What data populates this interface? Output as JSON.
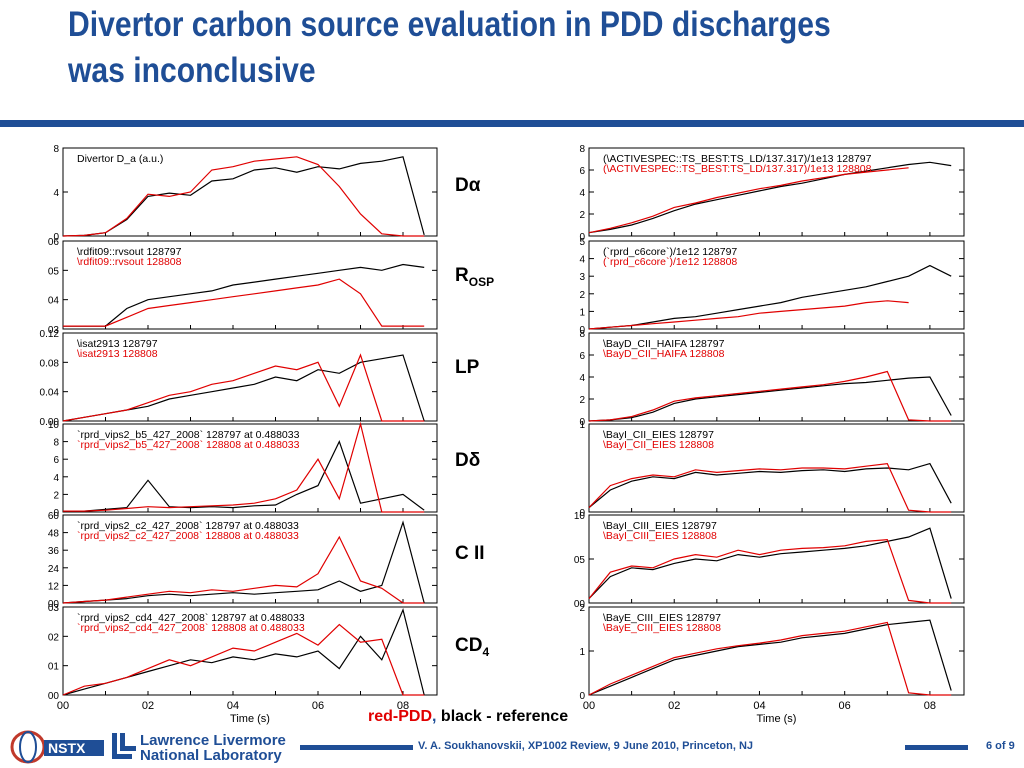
{
  "title": "Divertor carbon source evaluation in PDD discharges was inconclusive",
  "middle_labels": {
    "d_alpha": "Dα",
    "r_main": "R",
    "r_sub": "OSP",
    "lp": "LP",
    "d_delta": "Dδ",
    "c2": "C II",
    "cd_main": "CD",
    "cd_sub": "4"
  },
  "legend_note": {
    "red": "red-PDD",
    "comma": ",",
    "black": " black - reference"
  },
  "footer": {
    "text": "V. A. Soukhanovskii, XP1002 Review, 9 June 2010, Princeton, NJ",
    "page": "6 of 9"
  },
  "logos": {
    "nstx": "NSTX",
    "llnl_line1": "Lawrence Livermore",
    "llnl_line2": "National Laboratory"
  },
  "colors": {
    "title": "#1f4e96",
    "ref_line": "#000000",
    "pdd_line": "#e00000"
  },
  "chart_data": [
    {
      "type": "line",
      "column": "left",
      "x": [
        0.0,
        0.05,
        0.1,
        0.15,
        0.2,
        0.25,
        0.3,
        0.35,
        0.4,
        0.45,
        0.5,
        0.55,
        0.6,
        0.65,
        0.7,
        0.75,
        0.8,
        0.85
      ],
      "ylim": [
        0,
        8
      ],
      "yticks": [
        "0",
        "4",
        "8"
      ],
      "xticks": [],
      "labels": [
        "Divertor D_a (a.u.)"
      ],
      "series": [
        {
          "values": [
            0,
            0.05,
            0.3,
            1.5,
            3.6,
            3.9,
            3.7,
            5.0,
            5.2,
            6.0,
            6.2,
            5.8,
            6.3,
            6.1,
            6.6,
            6.8,
            7.2,
            0.1
          ]
        },
        {
          "values": [
            0,
            0.05,
            0.3,
            1.6,
            3.8,
            3.6,
            4.0,
            6.0,
            6.3,
            6.8,
            7.0,
            7.2,
            6.5,
            4.5,
            2.0,
            0.2,
            0.0,
            0.0
          ]
        }
      ]
    },
    {
      "type": "line",
      "column": "left",
      "x": [
        0.0,
        0.05,
        0.1,
        0.15,
        0.2,
        0.25,
        0.3,
        0.35,
        0.4,
        0.45,
        0.5,
        0.55,
        0.6,
        0.65,
        0.7,
        0.75,
        0.8,
        0.85
      ],
      "ylim": [
        0.03,
        0.06
      ],
      "yticks": [
        "03",
        "04",
        "05",
        "06"
      ],
      "xticks": [],
      "labels": [
        "\\rdfit09::rvsout  128797",
        "\\rdfit09::rvsout  128808"
      ],
      "series": [
        {
          "values": [
            0.031,
            0.031,
            0.031,
            0.037,
            0.04,
            0.041,
            0.042,
            0.043,
            0.045,
            0.046,
            0.047,
            0.048,
            0.049,
            0.05,
            0.051,
            0.05,
            0.052,
            0.051
          ]
        },
        {
          "values": [
            0.031,
            0.031,
            0.031,
            0.034,
            0.037,
            0.038,
            0.039,
            0.04,
            0.041,
            0.042,
            0.043,
            0.044,
            0.045,
            0.047,
            0.042,
            0.031,
            0.031,
            0.031
          ]
        }
      ]
    },
    {
      "type": "line",
      "column": "left",
      "x": [
        0.0,
        0.05,
        0.1,
        0.15,
        0.2,
        0.25,
        0.3,
        0.35,
        0.4,
        0.45,
        0.5,
        0.55,
        0.6,
        0.65,
        0.7,
        0.75,
        0.8,
        0.85
      ],
      "ylim": [
        0,
        0.12
      ],
      "yticks": [
        "0.00",
        "0.04",
        "0.08",
        "0.12"
      ],
      "xticks": [],
      "labels": [
        "\\isat2913  128797",
        "\\isat2913  128808"
      ],
      "series": [
        {
          "values": [
            0.0,
            0.005,
            0.01,
            0.015,
            0.02,
            0.03,
            0.035,
            0.04,
            0.045,
            0.05,
            0.06,
            0.055,
            0.07,
            0.065,
            0.08,
            0.085,
            0.09,
            0.0
          ]
        },
        {
          "values": [
            0.0,
            0.005,
            0.01,
            0.015,
            0.025,
            0.035,
            0.04,
            0.05,
            0.055,
            0.065,
            0.075,
            0.07,
            0.08,
            0.02,
            0.09,
            0.0,
            0.0,
            0.0
          ]
        }
      ]
    },
    {
      "type": "line",
      "column": "left",
      "x": [
        0.0,
        0.05,
        0.1,
        0.15,
        0.2,
        0.25,
        0.3,
        0.35,
        0.4,
        0.45,
        0.5,
        0.55,
        0.6,
        0.65,
        0.7,
        0.75,
        0.8,
        0.85
      ],
      "ylim": [
        0,
        10
      ],
      "yticks": [
        "0",
        "2",
        "4",
        "6",
        "8",
        "10"
      ],
      "xticks": [],
      "labels": [
        "`rprd_vips2_b5_427_2008`  128797 at 0.488033",
        "`rprd_vips2_b5_427_2008`  128808 at 0.488033"
      ],
      "series": [
        {
          "values": [
            0.1,
            0.1,
            0.3,
            0.5,
            3.6,
            0.6,
            0.5,
            0.6,
            0.5,
            0.7,
            0.8,
            2.0,
            3.0,
            8.0,
            1.0,
            1.5,
            2.0,
            0.2
          ]
        },
        {
          "values": [
            0.1,
            0.1,
            0.2,
            0.4,
            0.6,
            0.5,
            0.6,
            0.7,
            0.8,
            1.0,
            1.5,
            2.5,
            6.0,
            1.5,
            10.0,
            0.0,
            0.0,
            0.0
          ]
        }
      ]
    },
    {
      "type": "line",
      "column": "left",
      "x": [
        0.0,
        0.05,
        0.1,
        0.15,
        0.2,
        0.25,
        0.3,
        0.35,
        0.4,
        0.45,
        0.5,
        0.55,
        0.6,
        0.65,
        0.7,
        0.75,
        0.8,
        0.85
      ],
      "ylim": [
        0,
        60
      ],
      "yticks": [
        "00",
        "12",
        "24",
        "36",
        "48",
        "60"
      ],
      "xticks": [],
      "labels": [
        "`rprd_vips2_c2_427_2008`  128797 at 0.488033",
        "`rprd_vips2_c2_427_2008`  128808 at 0.488033"
      ],
      "series": [
        {
          "values": [
            0,
            1,
            2,
            3,
            5,
            6,
            5,
            6,
            7,
            6,
            7,
            8,
            9,
            15,
            8,
            12,
            55,
            0
          ]
        },
        {
          "values": [
            0,
            1,
            2,
            4,
            6,
            8,
            7,
            9,
            8,
            10,
            12,
            11,
            20,
            45,
            15,
            10,
            0,
            0
          ]
        }
      ]
    },
    {
      "type": "line",
      "column": "left",
      "x": [
        0.0,
        0.05,
        0.1,
        0.15,
        0.2,
        0.25,
        0.3,
        0.35,
        0.4,
        0.45,
        0.5,
        0.55,
        0.6,
        0.65,
        0.7,
        0.75,
        0.8,
        0.85
      ],
      "ylim": [
        0,
        0.03
      ],
      "yticks": [
        "00",
        "01",
        "02",
        "03"
      ],
      "xticks": [
        "00",
        "02",
        "04",
        "06",
        "08"
      ],
      "xlabel": "Time (s)",
      "labels": [
        "`rprd_vips2_cd4_427_2008`  128797 at 0.488033",
        "`rprd_vips2_cd4_427_2008`  128808 at 0.488033"
      ],
      "series": [
        {
          "values": [
            0.0,
            0.002,
            0.004,
            0.006,
            0.008,
            0.01,
            0.012,
            0.011,
            0.013,
            0.012,
            0.014,
            0.013,
            0.015,
            0.009,
            0.02,
            0.012,
            0.029,
            0.0
          ]
        },
        {
          "values": [
            0.0,
            0.003,
            0.004,
            0.006,
            0.009,
            0.012,
            0.01,
            0.013,
            0.016,
            0.015,
            0.018,
            0.021,
            0.017,
            0.024,
            0.018,
            0.019,
            0.0,
            0.0
          ]
        }
      ]
    },
    {
      "type": "line",
      "column": "right",
      "x": [
        0.0,
        0.05,
        0.1,
        0.15,
        0.2,
        0.25,
        0.3,
        0.35,
        0.4,
        0.45,
        0.5,
        0.55,
        0.6,
        0.65,
        0.7,
        0.75,
        0.8,
        0.85
      ],
      "ylim": [
        0,
        8
      ],
      "yticks": [
        "0",
        "2",
        "4",
        "6",
        "8"
      ],
      "xticks": [],
      "labels": [
        "(\\ACTIVESPEC::TS_BEST:TS_LD/137.317)/1e13  128797",
        "(\\ACTIVESPEC::TS_BEST:TS_LD/137.317)/1e13  128808"
      ],
      "series": [
        {
          "values": [
            0.3,
            0.6,
            1.0,
            1.6,
            2.3,
            2.9,
            3.3,
            3.7,
            4.1,
            4.5,
            4.8,
            5.2,
            5.6,
            5.9,
            6.2,
            6.5,
            6.7,
            6.4
          ]
        },
        {
          "values": [
            0.3,
            0.7,
            1.2,
            1.8,
            2.6,
            3.0,
            3.5,
            3.9,
            4.3,
            4.6,
            5.0,
            5.3,
            5.6,
            5.8,
            6.0,
            6.2,
            null,
            null
          ]
        }
      ]
    },
    {
      "type": "line",
      "column": "right",
      "x": [
        0.0,
        0.05,
        0.1,
        0.15,
        0.2,
        0.25,
        0.3,
        0.35,
        0.4,
        0.45,
        0.5,
        0.55,
        0.6,
        0.65,
        0.7,
        0.75,
        0.8,
        0.85
      ],
      "ylim": [
        0,
        5
      ],
      "yticks": [
        "0",
        "1",
        "2",
        "3",
        "4",
        "5"
      ],
      "xticks": [],
      "labels": [
        "(`rprd_c6core`)/1e12  128797",
        "(`rprd_c6core`)/1e12  128808"
      ],
      "series": [
        {
          "values": [
            0.0,
            0.1,
            0.2,
            0.4,
            0.6,
            0.7,
            0.9,
            1.1,
            1.3,
            1.5,
            1.8,
            2.0,
            2.2,
            2.4,
            2.7,
            3.0,
            3.6,
            3.0
          ]
        },
        {
          "values": [
            0.0,
            0.1,
            0.2,
            0.3,
            0.4,
            0.5,
            0.6,
            0.7,
            0.9,
            1.0,
            1.1,
            1.2,
            1.3,
            1.5,
            1.6,
            1.5,
            null,
            null
          ]
        }
      ]
    },
    {
      "type": "line",
      "column": "right",
      "x": [
        0.0,
        0.05,
        0.1,
        0.15,
        0.2,
        0.25,
        0.3,
        0.35,
        0.4,
        0.45,
        0.5,
        0.55,
        0.6,
        0.65,
        0.7,
        0.75,
        0.8,
        0.85
      ],
      "ylim": [
        0,
        8
      ],
      "yticks": [
        "0",
        "2",
        "4",
        "6",
        "8"
      ],
      "xticks": [],
      "labels": [
        "\\BayD_CII_HAIFA  128797",
        "\\BayD_CII_HAIFA  128808"
      ],
      "series": [
        {
          "values": [
            0.0,
            0.1,
            0.3,
            0.8,
            1.6,
            2.0,
            2.2,
            2.4,
            2.6,
            2.8,
            3.0,
            3.2,
            3.4,
            3.5,
            3.7,
            3.9,
            4.0,
            0.5
          ]
        },
        {
          "values": [
            0.0,
            0.1,
            0.4,
            1.0,
            1.8,
            2.1,
            2.3,
            2.5,
            2.7,
            2.9,
            3.1,
            3.3,
            3.6,
            4.0,
            4.5,
            0.1,
            0.0,
            0.0
          ]
        }
      ]
    },
    {
      "type": "line",
      "column": "right",
      "x": [
        0.0,
        0.05,
        0.1,
        0.15,
        0.2,
        0.25,
        0.3,
        0.35,
        0.4,
        0.45,
        0.5,
        0.55,
        0.6,
        0.65,
        0.7,
        0.75,
        0.8,
        0.85
      ],
      "ylim": [
        0,
        1
      ],
      "yticks": [
        "0",
        "1"
      ],
      "xticks": [],
      "labels": [
        "\\BayI_CII_EIES  128797",
        "\\BayI_CII_EIES  128808"
      ],
      "series": [
        {
          "values": [
            0.05,
            0.25,
            0.35,
            0.4,
            0.38,
            0.45,
            0.42,
            0.44,
            0.46,
            0.45,
            0.47,
            0.48,
            0.46,
            0.49,
            0.5,
            0.48,
            0.55,
            0.1
          ]
        },
        {
          "values": [
            0.05,
            0.3,
            0.38,
            0.42,
            0.4,
            0.48,
            0.45,
            0.47,
            0.49,
            0.48,
            0.5,
            0.5,
            0.49,
            0.52,
            0.55,
            0.02,
            0.0,
            0.0
          ]
        }
      ]
    },
    {
      "type": "line",
      "column": "right",
      "x": [
        0.0,
        0.05,
        0.1,
        0.15,
        0.2,
        0.25,
        0.3,
        0.35,
        0.4,
        0.45,
        0.5,
        0.55,
        0.6,
        0.65,
        0.7,
        0.75,
        0.8,
        0.85
      ],
      "ylim": [
        0,
        1.0
      ],
      "yticks": [
        "00",
        "05",
        "10"
      ],
      "xticks": [],
      "labels": [
        "\\BayI_CIII_EIES  128797",
        "\\BayI_CIII_EIES  128808"
      ],
      "series": [
        {
          "values": [
            0.05,
            0.3,
            0.4,
            0.38,
            0.45,
            0.5,
            0.48,
            0.55,
            0.52,
            0.56,
            0.58,
            0.6,
            0.62,
            0.65,
            0.7,
            0.75,
            0.85,
            0.05
          ]
        },
        {
          "values": [
            0.05,
            0.35,
            0.42,
            0.4,
            0.5,
            0.55,
            0.52,
            0.6,
            0.55,
            0.6,
            0.62,
            0.63,
            0.65,
            0.7,
            0.72,
            0.03,
            0.0,
            0.0
          ]
        }
      ]
    },
    {
      "type": "line",
      "column": "right",
      "x": [
        0.0,
        0.05,
        0.1,
        0.15,
        0.2,
        0.25,
        0.3,
        0.35,
        0.4,
        0.45,
        0.5,
        0.55,
        0.6,
        0.65,
        0.7,
        0.75,
        0.8,
        0.85
      ],
      "ylim": [
        0,
        2
      ],
      "yticks": [
        "0",
        "1",
        "2"
      ],
      "xticks": [
        "00",
        "02",
        "04",
        "06",
        "08"
      ],
      "xlabel": "Time (s)",
      "labels": [
        "\\BayE_CIII_EIES  128797",
        "\\BayE_CIII_EIES  128808"
      ],
      "series": [
        {
          "values": [
            0.0,
            0.2,
            0.4,
            0.6,
            0.8,
            0.9,
            1.0,
            1.1,
            1.15,
            1.2,
            1.3,
            1.35,
            1.4,
            1.5,
            1.6,
            1.65,
            1.7,
            0.1
          ]
        },
        {
          "values": [
            0.0,
            0.25,
            0.45,
            0.65,
            0.85,
            0.95,
            1.05,
            1.12,
            1.18,
            1.25,
            1.35,
            1.4,
            1.45,
            1.55,
            1.65,
            0.05,
            0.0,
            0.0
          ]
        }
      ]
    }
  ]
}
